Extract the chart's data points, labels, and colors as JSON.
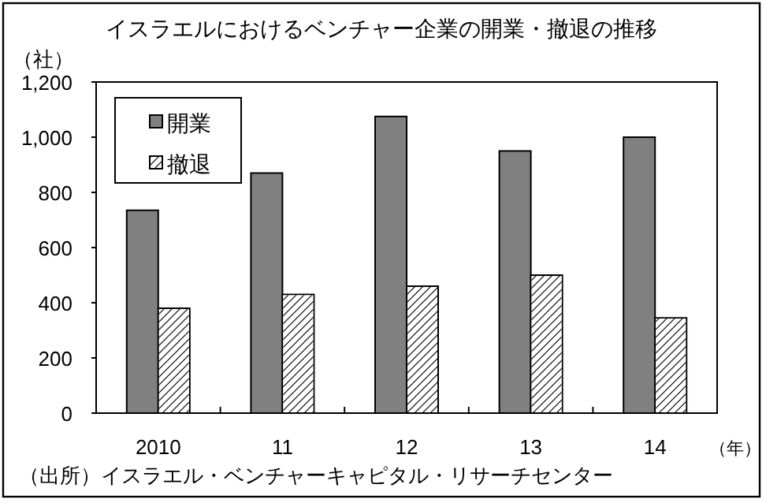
{
  "chart_data": {
    "type": "bar",
    "title": "イスラエルにおけるベンチャー企業の開業・撤退の推移",
    "ylabel": "（社）",
    "xlabel": "（年）",
    "categories": [
      "2010",
      "11",
      "12",
      "13",
      "14"
    ],
    "series": [
      {
        "name": "開業",
        "color": "#808080",
        "values": [
          735,
          870,
          1075,
          950,
          1000
        ]
      },
      {
        "name": "撤退",
        "color": "#ffffff",
        "values": [
          380,
          430,
          460,
          500,
          345
        ]
      }
    ],
    "ylim": [
      0,
      1200
    ],
    "yticks": [
      0,
      200,
      400,
      600,
      800,
      {
        "value": 1000,
        "label": "1,000"
      },
      {
        "value": 1200,
        "label": "1,200"
      }
    ],
    "grid": false,
    "legend": "top left",
    "annotations": [
      "（出所）イスラエル・ベンチャーキャピタル・リサーチセンター"
    ]
  }
}
